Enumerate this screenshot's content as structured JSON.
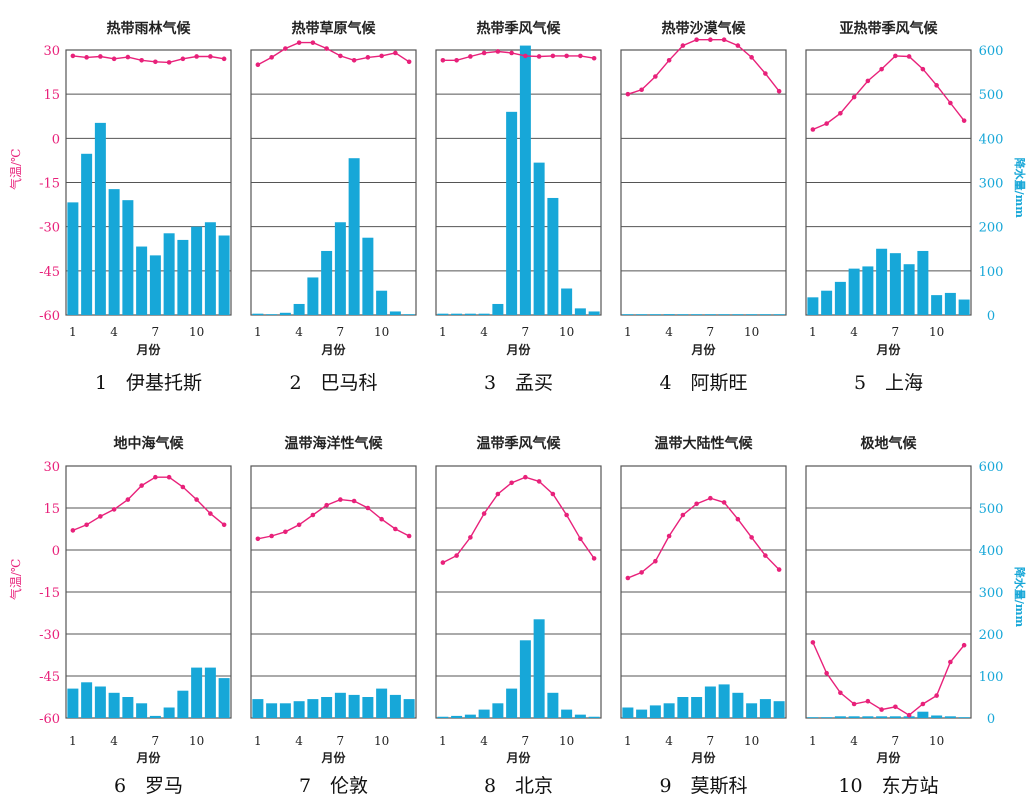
{
  "left_axis_label": "气温/℃",
  "right_axis_label": "降水量/mm",
  "xlabel": "月份",
  "temp_ticks": [
    "30",
    "15",
    "0",
    "-15",
    "-30",
    "-45",
    "-60"
  ],
  "precip_ticks": [
    "600",
    "500",
    "400",
    "300",
    "200",
    "100",
    "0"
  ],
  "month_ticks": [
    "1",
    "4",
    "7",
    "10"
  ],
  "chart_data": [
    {
      "type": "bar+line",
      "title": "热带雨林气候",
      "caption": "1　伊基托斯",
      "temp_range": [
        -60,
        30
      ],
      "precip_range": [
        0,
        600
      ],
      "temp": [
        28,
        27.5,
        27.8,
        27,
        27.6,
        26.5,
        26,
        25.8,
        27,
        27.8,
        27.8,
        27
      ],
      "precip": [
        255,
        365,
        435,
        285,
        260,
        155,
        135,
        185,
        170,
        200,
        210,
        180
      ]
    },
    {
      "type": "bar+line",
      "title": "热带草原气候",
      "caption": "2　巴马科",
      "temp_range": [
        -60,
        30
      ],
      "precip_range": [
        0,
        600
      ],
      "temp": [
        25,
        27.5,
        30.5,
        32.5,
        32.5,
        30.5,
        28,
        26.5,
        27.5,
        28,
        29,
        26
      ],
      "precip": [
        3,
        0,
        5,
        25,
        85,
        145,
        210,
        355,
        175,
        55,
        8,
        0
      ]
    },
    {
      "type": "bar+line",
      "title": "热带季风气候",
      "caption": "3　孟买",
      "temp_range": [
        -60,
        30
      ],
      "precip_range": [
        0,
        600
      ],
      "temp": [
        26.5,
        26.5,
        27.8,
        29,
        29.5,
        29,
        28,
        27.8,
        28,
        28,
        28,
        27.2
      ],
      "precip": [
        3,
        3,
        3,
        3,
        25,
        460,
        610,
        345,
        265,
        60,
        15,
        8
      ]
    },
    {
      "type": "bar+line",
      "title": "热带沙漠气候",
      "caption": "4　阿斯旺",
      "temp_range": [
        -60,
        30
      ],
      "precip_range": [
        0,
        600
      ],
      "temp": [
        15,
        16.5,
        21,
        26.5,
        31.5,
        33.5,
        33.5,
        33.5,
        31.5,
        27.5,
        22,
        16
      ],
      "precip": [
        0,
        0,
        0,
        2,
        0,
        0,
        0,
        0,
        0,
        1,
        0,
        0
      ]
    },
    {
      "type": "bar+line",
      "title": "亚热带季风气候",
      "caption": "5　上海",
      "temp_range": [
        -60,
        30
      ],
      "precip_range": [
        0,
        600
      ],
      "temp": [
        3,
        5,
        8.5,
        14,
        19.5,
        23.5,
        28,
        27.8,
        23.5,
        18,
        12,
        6
      ],
      "precip": [
        40,
        55,
        75,
        105,
        110,
        150,
        140,
        115,
        145,
        45,
        50,
        35
      ]
    },
    {
      "type": "bar+line",
      "title": "地中海气候",
      "caption": "6　罗马",
      "temp_range": [
        -60,
        30
      ],
      "precip_range": [
        0,
        600
      ],
      "temp": [
        7,
        9,
        12,
        14.5,
        18,
        23,
        26,
        26,
        22.5,
        18,
        13,
        9
      ],
      "precip": [
        70,
        85,
        75,
        60,
        50,
        35,
        5,
        25,
        65,
        120,
        120,
        95
      ]
    },
    {
      "type": "bar+line",
      "title": "温带海洋性气候",
      "caption": "7　伦敦",
      "temp_range": [
        -60,
        30
      ],
      "precip_range": [
        0,
        600
      ],
      "temp": [
        4,
        5,
        6.5,
        9,
        12.5,
        16,
        18,
        17.5,
        15,
        11,
        7.5,
        5
      ],
      "precip": [
        45,
        35,
        35,
        40,
        45,
        50,
        60,
        55,
        50,
        70,
        55,
        45
      ]
    },
    {
      "type": "bar+line",
      "title": "温带季风气候",
      "caption": "8　北京",
      "temp_range": [
        -60,
        30
      ],
      "precip_range": [
        0,
        600
      ],
      "temp": [
        -4.5,
        -2,
        4.5,
        13,
        20,
        24,
        26,
        24.5,
        20,
        12.5,
        4,
        -3
      ],
      "precip": [
        3,
        5,
        8,
        20,
        35,
        70,
        185,
        235,
        60,
        20,
        8,
        3
      ]
    },
    {
      "type": "bar+line",
      "title": "温带大陆性气候",
      "caption": "9　莫斯科",
      "temp_range": [
        -60,
        30
      ],
      "precip_range": [
        0,
        600
      ],
      "temp": [
        -10,
        -8,
        -4,
        5,
        12.5,
        16.5,
        18.5,
        17,
        11,
        4.5,
        -2,
        -7
      ],
      "precip": [
        25,
        20,
        30,
        35,
        50,
        50,
        75,
        80,
        60,
        35,
        45,
        40
      ]
    },
    {
      "type": "bar+line",
      "title": "极地气候",
      "caption": "10　东方站",
      "temp_range": [
        -60,
        30
      ],
      "precip_range": [
        0,
        600
      ],
      "temp": [
        -33,
        -44,
        -51,
        -55,
        -54,
        -57,
        -56,
        -59,
        -55,
        -52,
        -40,
        -34
      ],
      "precip": [
        0,
        0,
        4,
        4,
        4,
        4,
        4,
        4,
        15,
        6,
        4,
        0
      ]
    }
  ]
}
